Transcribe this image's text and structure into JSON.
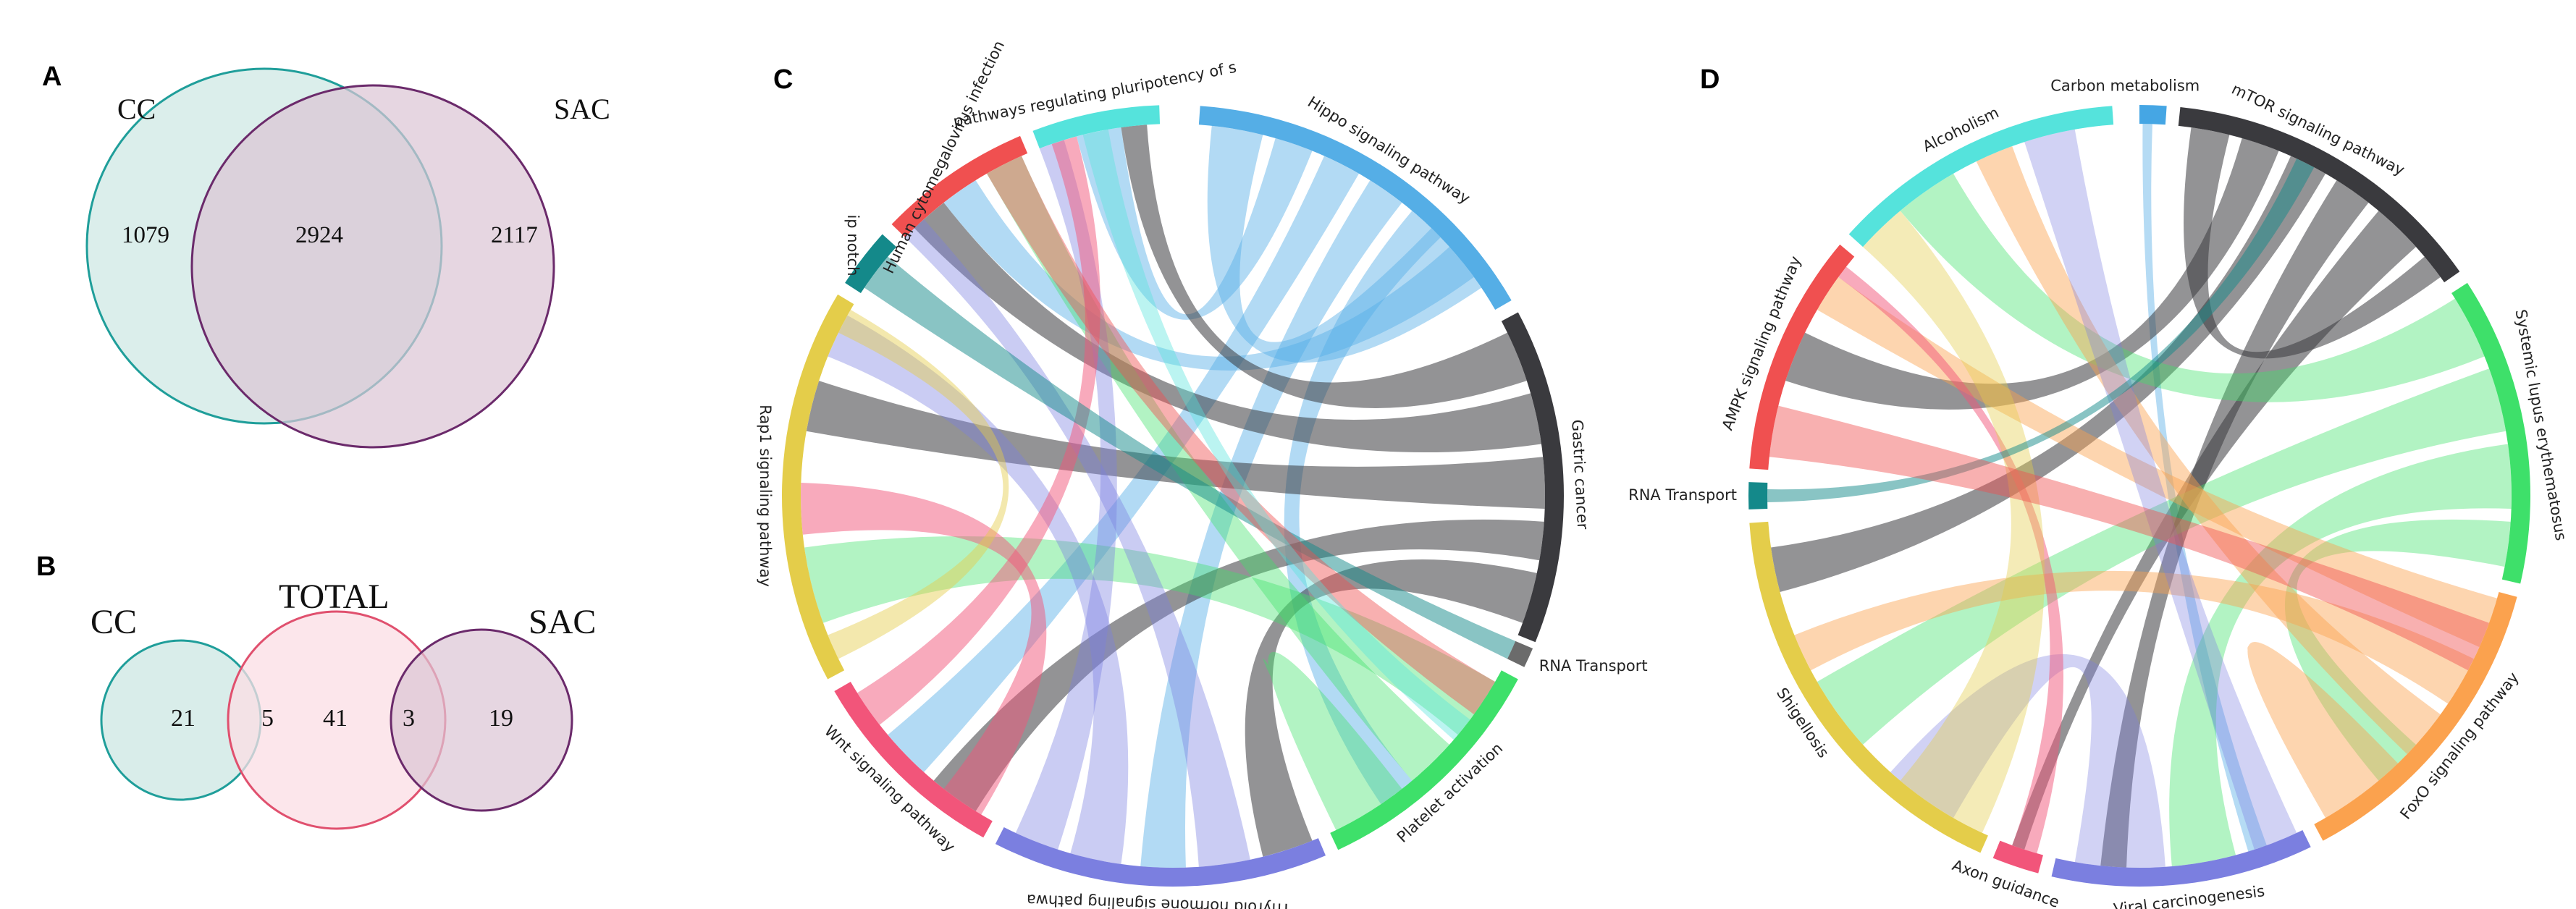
{
  "panel_a": {
    "letter": "A",
    "sets": [
      {
        "name": "CC",
        "color": "#1f9e9a",
        "fill": "#d5ebe8"
      },
      {
        "name": "SAC",
        "color": "#6b2a6b",
        "fill": "#e6d3df"
      }
    ],
    "counts": {
      "cc_only": "1079",
      "both": "2924",
      "sac_only": "2117"
    }
  },
  "panel_b": {
    "letter": "B",
    "sets": [
      {
        "name": "CC",
        "color": "#1f9e9a",
        "fill": "#d5ebe8"
      },
      {
        "name": "TOTAL",
        "color": "#e0506e",
        "fill": "#fbdde4"
      },
      {
        "name": "SAC",
        "color": "#6b2a6b",
        "fill": "#e6d3df"
      }
    ],
    "counts": {
      "cc_only": "21",
      "cc_total": "5",
      "total_only": "41",
      "total_sac": "3",
      "sac_only": "19"
    }
  },
  "panel_c": {
    "letter": "C",
    "sectors": [
      {
        "label": "Hippo signaling pathway",
        "color": "#55aee6"
      },
      {
        "label": "Gastric cancer",
        "color": "#3a3a3e"
      },
      {
        "label": "RNA Transport",
        "color": "#6b6b6b"
      },
      {
        "label": "Platelet activation",
        "color": "#3ee06a"
      },
      {
        "label": "Thyroid hormone signaling pathwa",
        "color": "#7b7fe0"
      },
      {
        "label": "Wnt signaling pathway",
        "color": "#f2557a"
      },
      {
        "label": "Rap1 signaling pathway",
        "color": "#e4cd4a"
      },
      {
        "label": "ip notch",
        "color": "#14898a"
      },
      {
        "label": "Human cytomegalovirus infection",
        "color": "#f05050"
      },
      {
        "label": "pathways regulating pluripotency of s",
        "color": "#55e3dc"
      }
    ]
  },
  "panel_d": {
    "letter": "D",
    "sectors": [
      {
        "label": "Carbon metabolism",
        "color": "#45a6e4"
      },
      {
        "label": "mTOR signaling pathway",
        "color": "#3a3a3e"
      },
      {
        "label": "Systemic lupus erythematosus",
        "color": "#3ee06a"
      },
      {
        "label": "FoxO signaling pathway",
        "color": "#fba24e"
      },
      {
        "label": "Viral carcinogenesis",
        "color": "#7b7fe0"
      },
      {
        "label": "Axon guidance",
        "color": "#f2557a"
      },
      {
        "label": "Shigellosis",
        "color": "#e4cd4a"
      },
      {
        "label": "RNA Transport",
        "color": "#14898a"
      },
      {
        "label": "AMPK signaling pathway",
        "color": "#f05050"
      },
      {
        "label": "Alcoholism",
        "color": "#55e3dc"
      }
    ]
  }
}
